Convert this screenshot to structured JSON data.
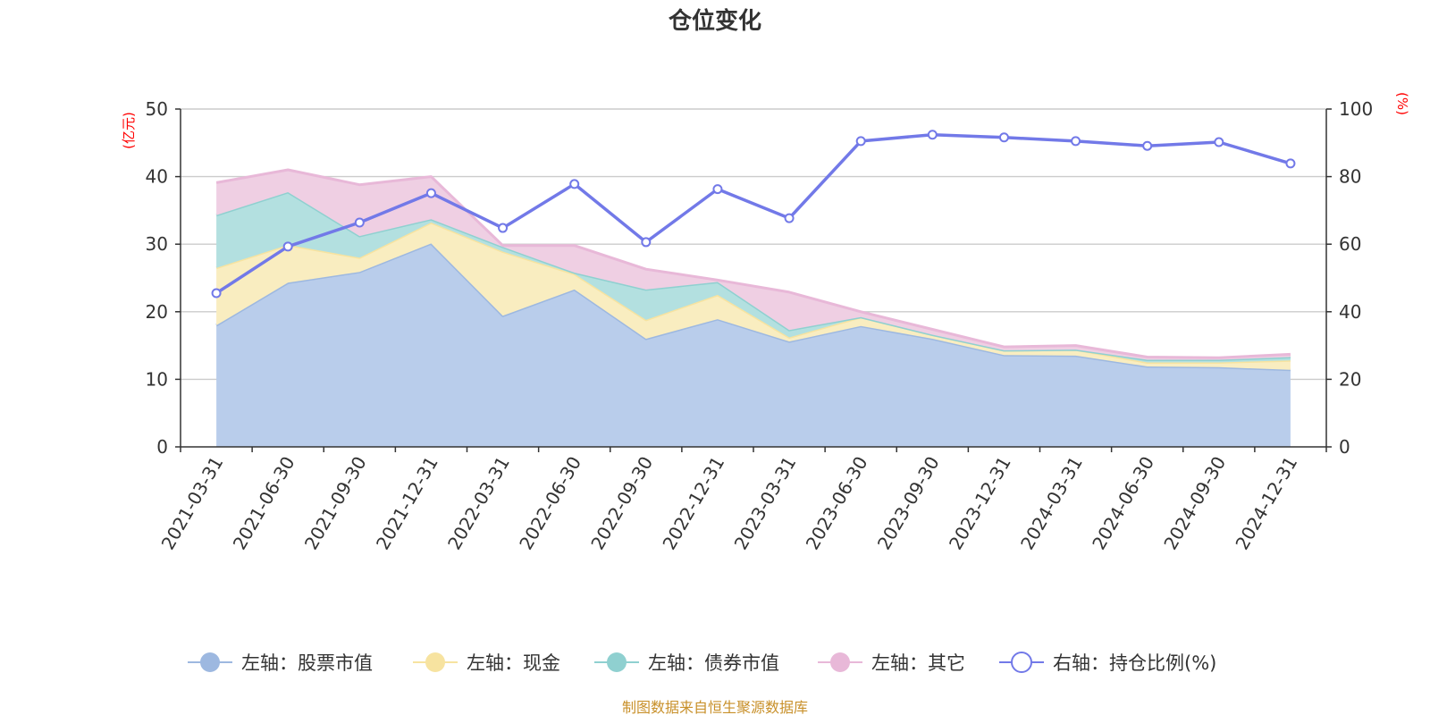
{
  "chart_data": {
    "type": "area",
    "title": "仓位变化",
    "categories": [
      "2021-03-31",
      "2021-06-30",
      "2021-09-30",
      "2021-12-31",
      "2022-03-31",
      "2022-06-30",
      "2022-09-30",
      "2022-12-31",
      "2023-03-31",
      "2023-06-30",
      "2023-09-30",
      "2023-12-31",
      "2024-03-31",
      "2024-06-30",
      "2024-09-30",
      "2024-12-31"
    ],
    "left_axis": {
      "label": "(亿元)",
      "ylim": [
        0,
        50
      ],
      "ticks": [
        "0",
        "10",
        "20",
        "30",
        "40",
        "50"
      ]
    },
    "right_axis": {
      "label": "(%)",
      "ylim": [
        0,
        100
      ],
      "ticks": [
        "0",
        "20",
        "40",
        "60",
        "80",
        "100"
      ]
    },
    "stacked": true,
    "series": [
      {
        "name": "左轴：股票市值",
        "type": "area",
        "axis": "left",
        "color": "#9db8e0",
        "fill": "#b9cdeb",
        "values": [
          18.0,
          24.3,
          25.9,
          30.1,
          19.4,
          23.3,
          16.0,
          18.9,
          15.6,
          17.9,
          16.0,
          13.6,
          13.5,
          11.9,
          11.8,
          11.4
        ]
      },
      {
        "name": "左轴：现金",
        "type": "area",
        "axis": "left",
        "color": "#f7e3a0",
        "fill": "#f9edc0",
        "values": [
          8.5,
          5.6,
          2.1,
          3.1,
          9.5,
          2.3,
          2.8,
          3.6,
          0.6,
          1.3,
          0.6,
          0.7,
          0.9,
          0.6,
          0.7,
          1.4
        ]
      },
      {
        "name": "左轴：债券市值",
        "type": "area",
        "axis": "left",
        "color": "#8fd0d0",
        "fill": "#b3e0e0",
        "values": [
          7.8,
          7.8,
          3.2,
          0.5,
          0.7,
          0.2,
          4.5,
          1.9,
          1.1,
          0.0,
          0.0,
          0.0,
          0.0,
          0.4,
          0.4,
          0.5
        ]
      },
      {
        "name": "左轴：其它",
        "type": "area",
        "axis": "left",
        "color": "#e8b8d8",
        "fill": "#efcfe3",
        "values": [
          4.8,
          3.3,
          7.6,
          6.3,
          0.2,
          4.0,
          3.0,
          0.3,
          5.6,
          0.8,
          0.8,
          0.5,
          0.6,
          0.4,
          0.3,
          0.4
        ]
      },
      {
        "name": "右轴：持仓比例(%)",
        "type": "line",
        "axis": "right",
        "color": "#7279e8",
        "values": [
          45.5,
          59.3,
          66.4,
          75.1,
          64.8,
          77.8,
          60.6,
          76.3,
          67.7,
          90.5,
          92.4,
          91.6,
          90.5,
          89.1,
          90.2,
          83.9
        ]
      }
    ],
    "legend_position": "bottom",
    "source_note": "制图数据来自恒生聚源数据库"
  }
}
